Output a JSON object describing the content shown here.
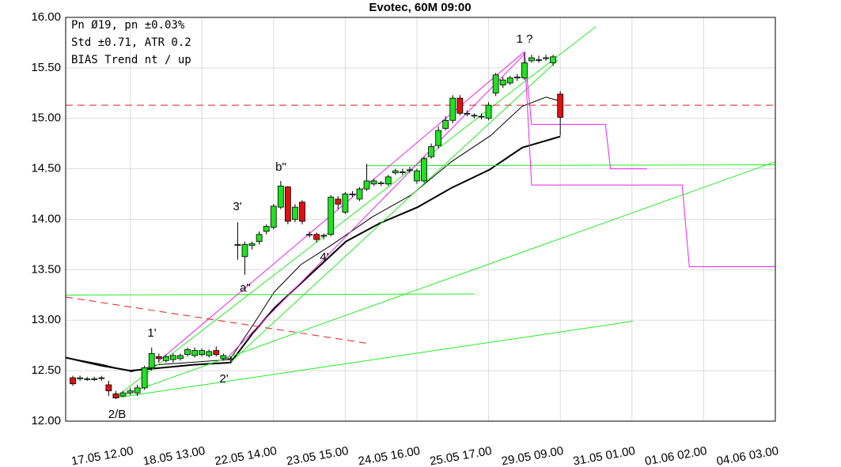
{
  "chart_data": {
    "type": "candlestick",
    "title": "Evotec, 60M 09:00",
    "info_lines": [
      "Pn  Ø19, pn ±0.03%",
      "Std ±0.71, ATR 0.2",
      "BIAS Trend nt / up"
    ],
    "annotations": [
      "1 ?",
      "b\"",
      "3'",
      "4'",
      "a\"",
      "1'",
      "2'",
      "2/B"
    ],
    "up_color": "#22e022",
    "down_color": "#e01010",
    "grid": true,
    "xlim": [
      0,
      99
    ],
    "xticks": [
      {
        "value": 9,
        "label": "17.05 12.00"
      },
      {
        "value": 19,
        "label": "18.05 13.00"
      },
      {
        "value": 29,
        "label": "22.05 14.00"
      },
      {
        "value": 39,
        "label": "23.05 15.00"
      },
      {
        "value": 49,
        "label": "24.05 16.00"
      },
      {
        "value": 59,
        "label": "25.05 17.00"
      },
      {
        "value": 69,
        "label": "29.05 09.00"
      },
      {
        "value": 79,
        "label": "31.05 01.00"
      },
      {
        "value": 89,
        "label": "01.06 02.00"
      },
      {
        "value": 99,
        "label": "04.06 03.00"
      }
    ],
    "ylim": [
      12,
      16
    ],
    "yticks": [
      {
        "value": 12,
        "label": "12.00"
      },
      {
        "value": 12.5,
        "label": "12.50"
      },
      {
        "value": 13,
        "label": "13.00"
      },
      {
        "value": 13.5,
        "label": "13.50"
      },
      {
        "value": 14,
        "label": "14.00"
      },
      {
        "value": 14.5,
        "label": "14.50"
      },
      {
        "value": 15,
        "label": "15.00"
      },
      {
        "value": 15.5,
        "label": "15.50"
      },
      {
        "value": 16,
        "label": "16.00"
      }
    ],
    "x": [
      1,
      2,
      3,
      4,
      5,
      6,
      7,
      8,
      9,
      10,
      11,
      12,
      13,
      14,
      15,
      16,
      17,
      18,
      19,
      20,
      21,
      22,
      23,
      24,
      25,
      26,
      27,
      28,
      29,
      30,
      31,
      32,
      33,
      34,
      35,
      36,
      37,
      38,
      39,
      40,
      41,
      42,
      43,
      44,
      45,
      46,
      47,
      48,
      49,
      50,
      51,
      52,
      53,
      54,
      55,
      56,
      57,
      58,
      59,
      60,
      61,
      62,
      63,
      64,
      65,
      66,
      67,
      68,
      69
    ],
    "open": [
      12.43,
      12.42,
      12.42,
      12.42,
      12.43,
      12.36,
      12.27,
      12.25,
      12.28,
      12.28,
      12.33,
      12.53,
      12.64,
      12.6,
      12.61,
      12.62,
      12.66,
      12.65,
      12.66,
      12.65,
      12.7,
      12.62,
      12.62,
      13.75,
      13.63,
      13.74,
      13.78,
      13.88,
      13.92,
      14.12,
      14.32,
      14.0,
      14.17,
      13.85,
      13.85,
      13.84,
      13.85,
      14.2,
      14.07,
      14.25,
      14.2,
      14.3,
      14.35,
      14.36,
      14.35,
      14.46,
      14.47,
      14.49,
      14.38,
      14.38,
      14.62,
      14.73,
      14.9,
      14.98,
      15.2,
      15.05,
      15.03,
      15.02,
      15.0,
      15.25,
      15.33,
      15.35,
      15.4,
      15.4,
      15.57,
      15.58,
      15.6,
      15.55,
      15.24
    ],
    "high": [
      12.45,
      12.45,
      12.44,
      12.44,
      12.45,
      12.4,
      12.3,
      12.3,
      12.33,
      12.36,
      12.55,
      12.73,
      12.67,
      12.66,
      12.67,
      12.67,
      12.73,
      12.73,
      12.72,
      12.71,
      12.74,
      12.67,
      12.64,
      13.97,
      13.78,
      13.78,
      13.88,
      13.95,
      14.15,
      14.38,
      14.33,
      14.15,
      14.19,
      13.88,
      13.87,
      13.86,
      14.24,
      14.23,
      14.27,
      14.28,
      14.32,
      14.55,
      14.4,
      14.38,
      14.44,
      14.5,
      14.5,
      14.52,
      14.5,
      14.62,
      14.75,
      14.92,
      15.02,
      15.23,
      15.23,
      15.08,
      15.05,
      15.05,
      15.16,
      15.45,
      15.41,
      15.42,
      15.44,
      15.65,
      15.63,
      15.62,
      15.63,
      15.63,
      15.27
    ],
    "low": [
      12.35,
      12.4,
      12.4,
      12.4,
      12.4,
      12.25,
      12.22,
      12.24,
      12.26,
      12.25,
      12.31,
      12.5,
      12.58,
      12.58,
      12.58,
      12.6,
      12.64,
      12.63,
      12.64,
      12.63,
      12.64,
      12.6,
      12.57,
      13.6,
      13.45,
      13.7,
      13.75,
      13.85,
      13.9,
      14.1,
      13.95,
      13.97,
      13.95,
      13.82,
      13.77,
      13.8,
      13.83,
      14.1,
      14.05,
      14.22,
      14.18,
      14.28,
      14.33,
      14.33,
      14.33,
      14.44,
      14.44,
      14.46,
      14.35,
      14.36,
      14.6,
      14.7,
      14.88,
      14.95,
      15.03,
      15.02,
      15.0,
      14.99,
      14.98,
      15.22,
      15.3,
      15.33,
      15.37,
      15.38,
      15.55,
      15.55,
      15.57,
      15.52,
      14.83
    ],
    "close": [
      12.37,
      12.43,
      12.42,
      12.42,
      12.43,
      12.3,
      12.23,
      12.28,
      12.3,
      12.33,
      12.53,
      12.67,
      12.62,
      12.64,
      12.65,
      12.65,
      12.71,
      12.7,
      12.7,
      12.69,
      12.66,
      12.65,
      12.62,
      13.75,
      13.75,
      13.76,
      13.85,
      13.93,
      14.13,
      14.33,
      13.98,
      14.12,
      13.98,
      13.85,
      13.8,
      13.84,
      14.22,
      14.15,
      14.25,
      14.25,
      14.3,
      14.38,
      14.38,
      14.36,
      14.42,
      14.48,
      14.47,
      14.49,
      14.48,
      14.6,
      14.72,
      14.88,
      14.98,
      15.2,
      15.05,
      15.05,
      15.03,
      15.02,
      15.13,
      15.43,
      15.38,
      15.4,
      15.41,
      15.55,
      15.6,
      15.58,
      15.6,
      15.61,
      15.01
    ],
    "lines": [
      {
        "color": "#000000",
        "width": 2,
        "x": [
          0,
          5,
          9,
          12,
          18,
          23,
          26.2,
          29.1,
          35,
          39.1,
          43.8,
          49.1,
          53.8,
          59.1,
          63.7,
          69
        ],
        "y": [
          12.63,
          12.55,
          12.5,
          12.52,
          12.56,
          12.58,
          12.88,
          13.12,
          13.51,
          13.78,
          13.96,
          14.12,
          14.31,
          14.49,
          14.71,
          14.82
        ]
      },
      {
        "color": "#000000",
        "width": 1,
        "x": [
          0,
          5.2,
          9.2,
          12.9,
          22.9,
          26.2,
          29.1,
          32.8,
          37.2,
          42.7,
          48.2,
          53.8,
          59.3,
          63.7,
          67,
          69
        ],
        "y": [
          12.63,
          12.56,
          12.49,
          12.56,
          12.61,
          12.96,
          13.28,
          13.55,
          13.75,
          14.02,
          14.24,
          14.57,
          14.83,
          15.12,
          15.21,
          15.17
        ]
      },
      {
        "color": "#22ee22",
        "width": 1,
        "x": [
          6.84,
          74
        ],
        "y": [
          12.23,
          15.91
        ]
      },
      {
        "color": "#22ee22",
        "width": 1,
        "x": [
          6.84,
          99
        ],
        "y": [
          12.23,
          14.57
        ]
      },
      {
        "color": "#22ee22",
        "width": 1,
        "x": [
          6.84,
          79.1
        ],
        "y": [
          12.23,
          12.99
        ]
      },
      {
        "color": "#22ee22",
        "width": 1,
        "x": [
          22.8,
          68.7
        ],
        "y": [
          12.57,
          15.58
        ]
      },
      {
        "color": "#22ee22",
        "width": 1,
        "x": [
          0,
          57.1
        ],
        "y": [
          13.25,
          13.26
        ]
      },
      {
        "color": "#22ee22",
        "width": 1,
        "x": [
          41.9,
          99
        ],
        "y": [
          14.53,
          14.54
        ]
      },
      {
        "color": "#ee22ee",
        "width": 1,
        "x": [
          12.9,
          64
        ],
        "y": [
          12.59,
          15.66
        ]
      },
      {
        "color": "#ee22ee",
        "width": 1,
        "x": [
          22.3,
          64.2
        ],
        "y": [
          12.61,
          15.65
        ]
      },
      {
        "color": "#ee22ee",
        "width": 1,
        "x": [
          64,
          65,
          75.3,
          76,
          81.1
        ],
        "y": [
          15.66,
          14.94,
          14.94,
          14.5,
          14.5
        ]
      },
      {
        "color": "#ee22ee",
        "width": 1,
        "x": [
          64,
          65,
          86,
          87,
          99
        ],
        "y": [
          15.66,
          14.34,
          14.34,
          13.53,
          13.53
        ]
      },
      {
        "color": "#e02020",
        "width": 1,
        "dashed": true,
        "x": [
          0,
          42.2
        ],
        "y": [
          13.23,
          12.77
        ]
      },
      {
        "color": "#e02020",
        "width": 1,
        "dashed": true,
        "x": [
          0,
          99
        ],
        "y": [
          15.13,
          15.13
        ]
      }
    ]
  }
}
